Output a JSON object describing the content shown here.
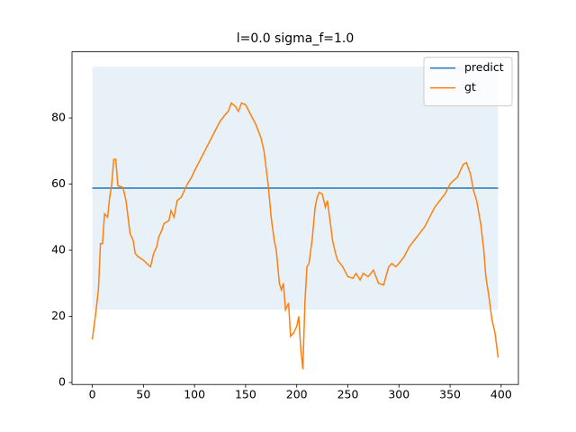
{
  "chart_data": {
    "type": "line",
    "title": "l=0.0 sigma_f=1.0",
    "xlim": [
      -19.85,
      416.85
    ],
    "ylim": [
      -0.6,
      100
    ],
    "xticks": [
      0,
      50,
      100,
      150,
      200,
      250,
      300,
      350,
      400
    ],
    "yticks": [
      0,
      20,
      40,
      60,
      80
    ],
    "legend": "upper right",
    "band": {
      "color": "#1f77b4",
      "x": [
        0,
        397
      ],
      "lower": [
        22,
        22
      ],
      "upper": [
        95.5,
        95.5
      ]
    },
    "series": [
      {
        "name": "predict",
        "color": "#1f77b4",
        "x": [
          0,
          397
        ],
        "values": [
          58.8,
          58.8
        ]
      },
      {
        "name": "gt",
        "color": "#ff7f0e",
        "x": [
          0,
          3,
          6,
          8,
          10,
          12,
          15,
          17,
          19,
          21,
          23,
          25,
          30,
          33,
          35,
          37,
          40,
          42,
          45,
          50,
          55,
          57,
          60,
          63,
          65,
          68,
          70,
          75,
          77,
          80,
          83,
          87,
          90,
          93,
          97,
          100,
          105,
          110,
          115,
          120,
          125,
          130,
          133,
          136,
          140,
          143,
          146,
          150,
          155,
          160,
          165,
          168,
          170,
          172,
          175,
          178,
          180,
          183,
          185,
          187,
          189,
          192,
          194,
          197,
          200,
          202,
          204,
          206,
          208,
          210,
          212,
          215,
          218,
          220,
          222,
          225,
          228,
          230,
          233,
          235,
          238,
          240,
          245,
          250,
          255,
          258,
          262,
          265,
          270,
          275,
          280,
          285,
          290,
          293,
          297,
          300,
          305,
          310,
          315,
          320,
          325,
          330,
          335,
          340,
          345,
          350,
          353,
          357,
          360,
          363,
          366,
          370,
          373,
          376,
          380,
          383,
          385,
          388,
          391,
          394,
          397
        ],
        "values": [
          13,
          20,
          28,
          42,
          42,
          51,
          50,
          56,
          60,
          67.5,
          67.5,
          59.5,
          59,
          55,
          50,
          45,
          43,
          39,
          38,
          37,
          35.5,
          35,
          39,
          41,
          44,
          46,
          48,
          49,
          52,
          50,
          55,
          56,
          58,
          60,
          62,
          64,
          67,
          70,
          73,
          76,
          79,
          81,
          82,
          84.5,
          83.5,
          82,
          84.5,
          84,
          81,
          78,
          74,
          70,
          65,
          60,
          50,
          43,
          40,
          30,
          28,
          30,
          22,
          24,
          14,
          15,
          17,
          20,
          10,
          4,
          24,
          35,
          36,
          43,
          53,
          56,
          57.5,
          57,
          53,
          55,
          48,
          43,
          39,
          37,
          35,
          32,
          31.5,
          33,
          31,
          33,
          32,
          34,
          30,
          29.5,
          35,
          36,
          35,
          36,
          38,
          41,
          43,
          45,
          47,
          50,
          53,
          55,
          57,
          60,
          61,
          62,
          64,
          66,
          66.5,
          63,
          58,
          55,
          48,
          40,
          32,
          26,
          19,
          15,
          7.5
        ]
      }
    ]
  }
}
